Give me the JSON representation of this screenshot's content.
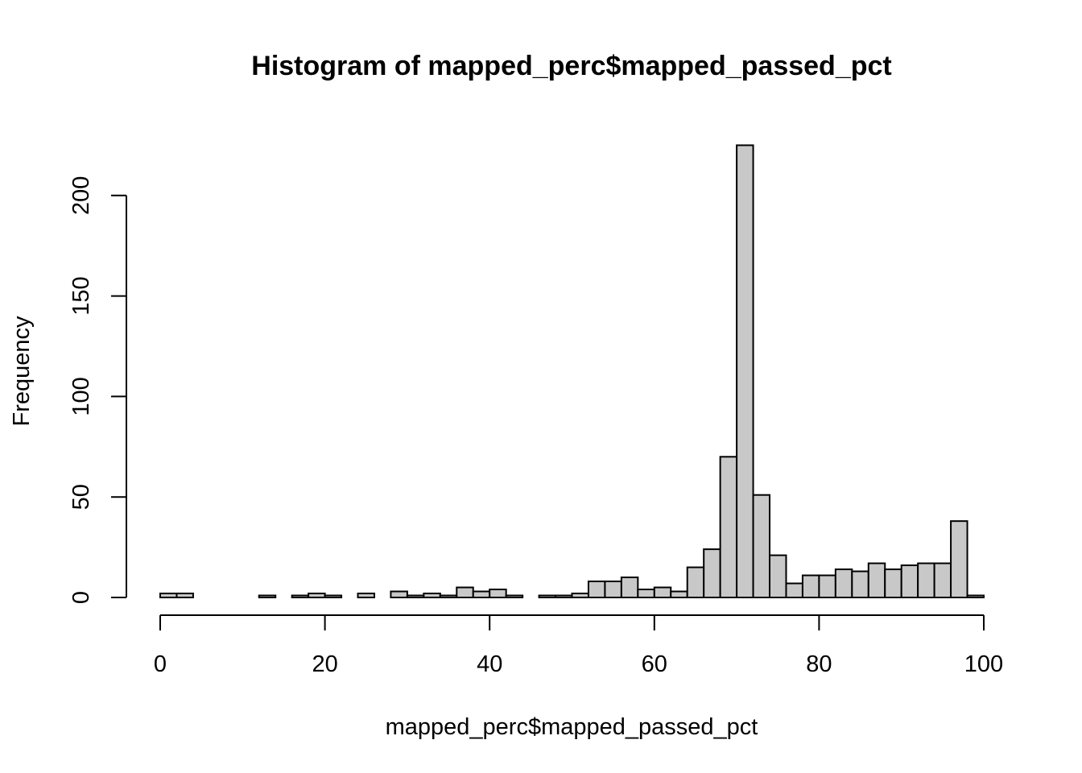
{
  "chart_data": {
    "type": "bar",
    "title": "Histogram of mapped_perc$mapped_passed_pct",
    "xlabel": "mapped_perc$mapped_passed_pct",
    "ylabel": "Frequency",
    "xlim": [
      0,
      100
    ],
    "ylim": [
      0,
      225
    ],
    "x_ticks": [
      0,
      20,
      40,
      60,
      80,
      100
    ],
    "y_ticks": [
      0,
      50,
      100,
      150,
      200
    ],
    "bin_width": 2,
    "bin_starts": [
      0,
      2,
      4,
      6,
      8,
      10,
      12,
      14,
      16,
      18,
      20,
      22,
      24,
      26,
      28,
      30,
      32,
      34,
      36,
      38,
      40,
      42,
      44,
      46,
      48,
      50,
      52,
      54,
      56,
      58,
      60,
      62,
      64,
      66,
      68,
      70,
      72,
      74,
      76,
      78,
      80,
      82,
      84,
      86,
      88,
      90,
      92,
      94,
      96,
      98
    ],
    "values": [
      2,
      2,
      0,
      0,
      0,
      0,
      1,
      0,
      1,
      2,
      1,
      0,
      2,
      0,
      3,
      1,
      2,
      1,
      5,
      3,
      4,
      1,
      0,
      1,
      1,
      2,
      8,
      8,
      10,
      4,
      5,
      3,
      15,
      24,
      70,
      225,
      51,
      21,
      7,
      11,
      11,
      14,
      13,
      17,
      14,
      16,
      17,
      17,
      38,
      1
    ],
    "bar_fill": "#c8c8c8",
    "grid": false
  }
}
